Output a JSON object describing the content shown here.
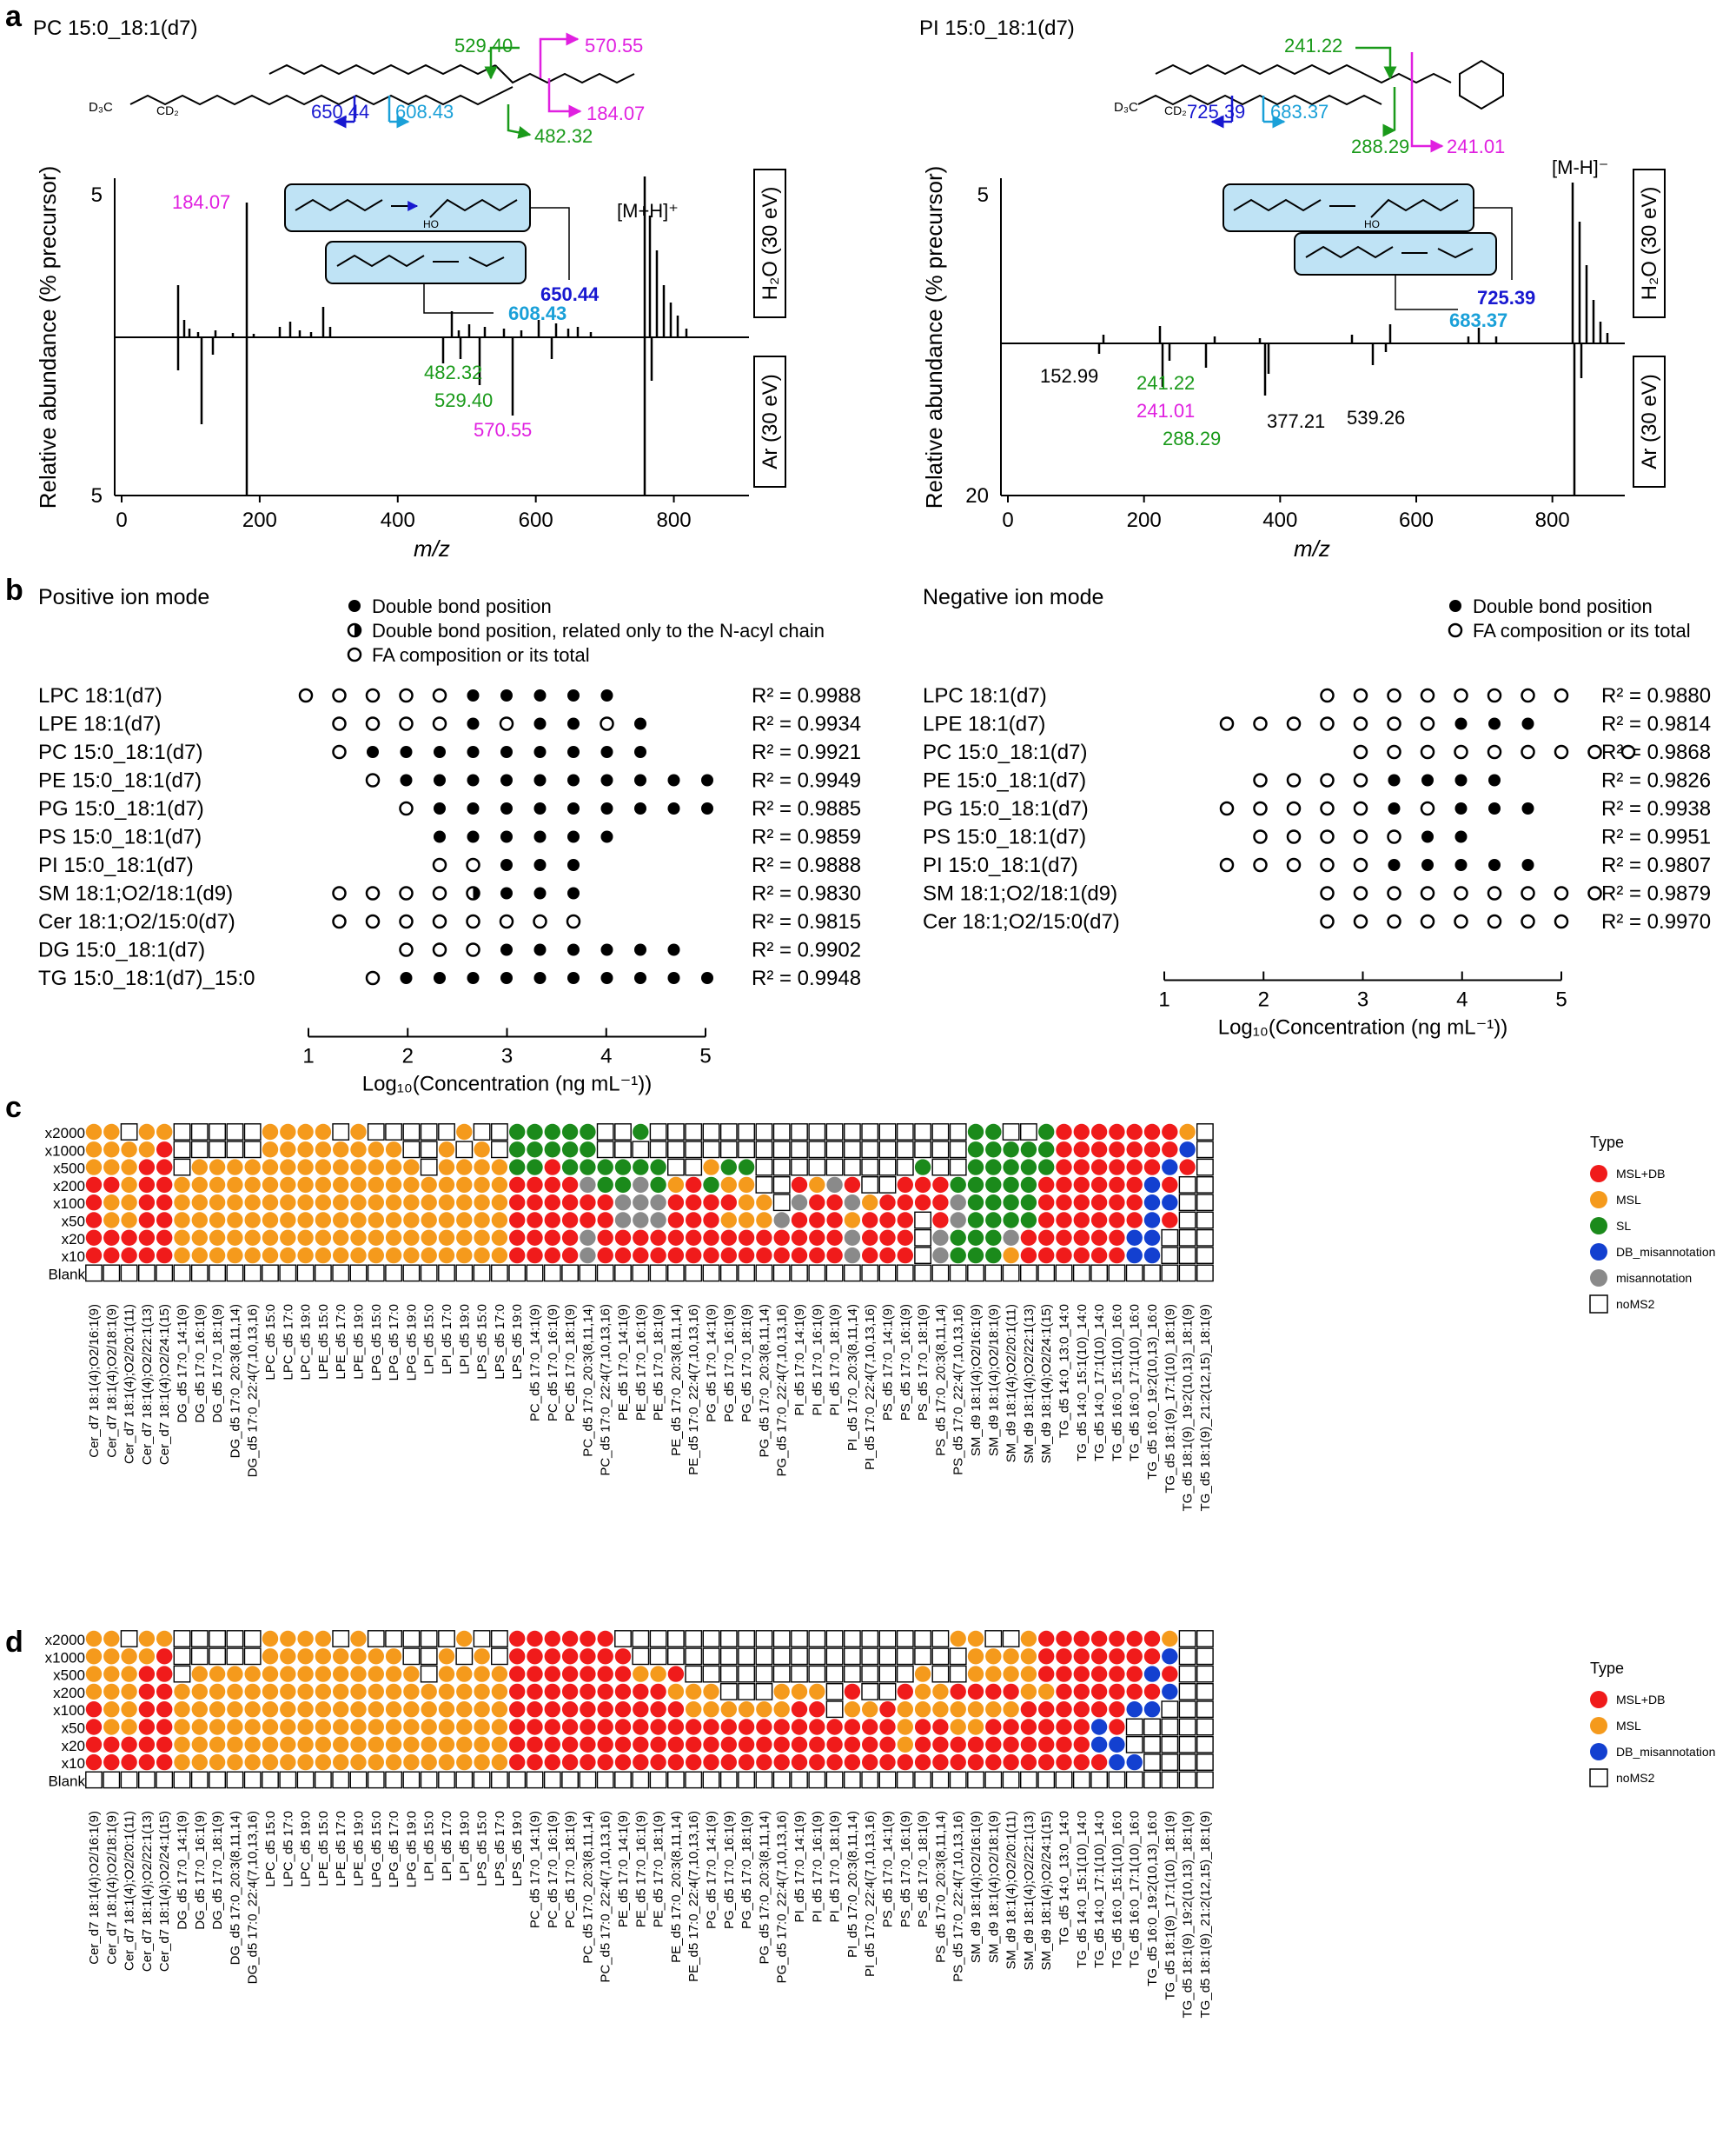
{
  "panel_letters": {
    "a": "a",
    "b": "b",
    "c": "c",
    "d": "d"
  },
  "panel_a": {
    "left": {
      "title": "PC 15:0_18:1(d7)",
      "precursor": "[M+H]⁺",
      "upper_label": "H₂O (30 eV)",
      "lower_label": "Ar (30 eV)",
      "y_top_tick": "5",
      "y_bottom_tick": "5",
      "structure_annotations": [
        "529.40",
        "570.55",
        "184.07",
        "482.32",
        "650.44",
        "608.43"
      ],
      "peak_184": "184.07",
      "peak_650": "650.44",
      "peak_608": "608.43",
      "lower_peaks": [
        "482.32",
        "529.40",
        "570.55"
      ],
      "x_ticks": [
        "0",
        "200",
        "400",
        "600",
        "800"
      ]
    },
    "right": {
      "title": "PI 15:0_18:1(d7)",
      "precursor": "[M-H]⁻",
      "upper_label": "H₂O (30 eV)",
      "lower_label": "Ar (30 eV)",
      "y_top_tick": "5",
      "y_bottom_tick": "20",
      "structure_annotations": [
        "241.22",
        "725.39",
        "683.37",
        "288.29",
        "241.01"
      ],
      "peak_725": "725.39",
      "peak_683": "683.37",
      "lower_peaks": [
        "152.99",
        "241.22",
        "241.01",
        "288.29",
        "377.21",
        "539.26"
      ],
      "x_ticks": [
        "0",
        "200",
        "400",
        "600",
        "800"
      ]
    },
    "ylabel": "Relative abundance (% precursor)",
    "xlabel": "m/z"
  },
  "panel_b": {
    "x_ticks": [
      "1",
      "2",
      "3",
      "4",
      "5"
    ],
    "xlabel": "Log₁₀(Concentration (ng mL⁻¹))",
    "positive": {
      "title": "Positive ion mode",
      "legend": [
        "Double bond position",
        "Double bond position, related only to the N-acyl chain",
        "FA composition or its total"
      ],
      "rows": [
        {
          "label": "LPC 18:1(d7)",
          "r2": "R² = 0.9988",
          "dots": "O O O O O F F F F F"
        },
        {
          "label": "LPE 18:1(d7)",
          "r2": "R² = 0.9934",
          "dots": "- O O O O F O F F O F"
        },
        {
          "label": "PC 15:0_18:1(d7)",
          "r2": "R² = 0.9921",
          "dots": "- O F F F F F F F F F"
        },
        {
          "label": "PE 15:0_18:1(d7)",
          "r2": "R² = 0.9949",
          "dots": "- - O F F F F F F F F F F"
        },
        {
          "label": "PG 15:0_18:1(d7)",
          "r2": "R² = 0.9885",
          "dots": "- - - O F F F F F F F F F"
        },
        {
          "label": "PS 15:0_18:1(d7)",
          "r2": "R² = 0.9859",
          "dots": "- - - - F F F F F F"
        },
        {
          "label": "PI 15:0_18:1(d7)",
          "r2": "R² = 0.9888",
          "dots": "- - - - O O F F F"
        },
        {
          "label": "SM 18:1;O2/18:1(d9)",
          "r2": "R² = 0.9830",
          "dots": "- O O O O H F F F"
        },
        {
          "label": "Cer 18:1;O2/15:0(d7)",
          "r2": "R² = 0.9815",
          "dots": "- O O O O O O O O"
        },
        {
          "label": "DG 15:0_18:1(d7)",
          "r2": "R² = 0.9902",
          "dots": "- - - O O O F F F F F F"
        },
        {
          "label": "TG 15:0_18:1(d7)_15:0",
          "r2": "R² = 0.9948",
          "dots": "- - O F F F F F F F F F F"
        }
      ]
    },
    "negative": {
      "title": "Negative ion mode",
      "legend": [
        "Double bond position",
        "FA composition or its total"
      ],
      "rows": [
        {
          "label": "LPC 18:1(d7)",
          "r2": "R² = 0.9880",
          "dots": "- - - O O O O O O O O"
        },
        {
          "label": "LPE 18:1(d7)",
          "r2": "R² = 0.9814",
          "dots": "O O O O O O O F F F"
        },
        {
          "label": "PC 15:0_18:1(d7)",
          "r2": "R² = 0.9868",
          "dots": "- - - - O O O O O O O O O"
        },
        {
          "label": "PE 15:0_18:1(d7)",
          "r2": "R² = 0.9826",
          "dots": "- O O O O F F F F"
        },
        {
          "label": "PG 15:0_18:1(d7)",
          "r2": "R² = 0.9938",
          "dots": "O O O O O F O F F F"
        },
        {
          "label": "PS 15:0_18:1(d7)",
          "r2": "R² = 0.9951",
          "dots": "- O O O O O F F"
        },
        {
          "label": "PI 15:0_18:1(d7)",
          "r2": "R² = 0.9807",
          "dots": "O O O O O F F F F F"
        },
        {
          "label": "SM 18:1;O2/18:1(d9)",
          "r2": "R² = 0.9879",
          "dots": "- - - O O O O O O O O O"
        },
        {
          "label": "Cer 18:1;O2/15:0(d7)",
          "r2": "R² = 0.9970",
          "dots": "- - - O O O O O O O O"
        }
      ]
    }
  },
  "dilutions": [
    "x2000",
    "x1000",
    "x500",
    "x200",
    "x100",
    "x50",
    "x20",
    "x10",
    "Blank"
  ],
  "lipid_names": [
    "Cer_d7 18:1(4);O2/16:1(9)",
    "Cer_d7 18:1(4);O2/18:1(9)",
    "Cer_d7 18:1(4);O2/20:1(11)",
    "Cer_d7 18:1(4);O2/22:1(13)",
    "Cer_d7 18:1(4);O2/24:1(15)",
    "DG_d5 17:0_14:1(9)",
    "DG_d5 17:0_16:1(9)",
    "DG_d5 17:0_18:1(9)",
    "DG_d5 17:0_20:3(8,11,14)",
    "DG_d5 17:0_22:4(7,10,13,16)",
    "LPC_d5 15:0",
    "LPC_d5 17:0",
    "LPC_d5 19:0",
    "LPE_d5 15:0",
    "LPE_d5 17:0",
    "LPE_d5 19:0",
    "LPG_d5 15:0",
    "LPG_d5 17:0",
    "LPG_d5 19:0",
    "LPI_d5 15:0",
    "LPI_d5 17:0",
    "LPI_d5 19:0",
    "LPS_d5 15:0",
    "LPS_d5 17:0",
    "LPS_d5 19:0",
    "PC_d5 17:0_14:1(9)",
    "PC_d5 17:0_16:1(9)",
    "PC_d5 17:0_18:1(9)",
    "PC_d5 17:0_20:3(8,11,14)",
    "PC_d5 17:0_22:4(7,10,13,16)",
    "PE_d5 17:0_14:1(9)",
    "PE_d5 17:0_16:1(9)",
    "PE_d5 17:0_18:1(9)",
    "PE_d5 17:0_20:3(8,11,14)",
    "PE_d5 17:0_22:4(7,10,13,16)",
    "PG_d5 17:0_14:1(9)",
    "PG_d5 17:0_16:1(9)",
    "PG_d5 17:0_18:1(9)",
    "PG_d5 17:0_20:3(8,11,14)",
    "PG_d5 17:0_22:4(7,10,13,16)",
    "PI_d5 17:0_14:1(9)",
    "PI_d5 17:0_16:1(9)",
    "PI_d5 17:0_18:1(9)",
    "PI_d5 17:0_20:3(8,11,14)",
    "PI_d5 17:0_22:4(7,10,13,16)",
    "PS_d5 17:0_14:1(9)",
    "PS_d5 17:0_16:1(9)",
    "PS_d5 17:0_18:1(9)",
    "PS_d5 17:0_20:3(8,11,14)",
    "PS_d5 17:0_22:4(7,10,13,16)",
    "SM_d9 18:1(4);O2/16:1(9)",
    "SM_d9 18:1(4);O2/18:1(9)",
    "SM_d9 18:1(4);O2/20:1(11)",
    "SM_d9 18:1(4);O2/22:1(13)",
    "SM_d9 18:1(4);O2/24:1(15)",
    "TG_d5 14:0_13:0_14:0",
    "TG_d5 14:0_15:1(10)_14:0",
    "TG_d5 14:0_17:1(10)_14:0",
    "TG_d5 16:0_15:1(10)_16:0",
    "TG_d5 16:0_17:1(10)_16:0",
    "TG_d5 16:0_19:2(10,13)_16:0",
    "TG_d5 18:1(9)_17:1(10)_18:1(9)",
    "TG_d5 18:1(9)_19:2(10,13)_18:1(9)",
    "TG_d5 18:1(9)_21:2(12,15)_18:1(9)"
  ],
  "panel_c": {
    "legend_title": "Type",
    "legend": [
      {
        "label": "MSL+DB",
        "color": "#f01b1b"
      },
      {
        "label": "MSL",
        "color": "#f59a1c"
      },
      {
        "label": "SL",
        "color": "#1b8a1b"
      },
      {
        "label": "DB_misannotation",
        "color": "#1340d0"
      },
      {
        "label": "misannotation",
        "color": "#8a8a8a"
      },
      {
        "label": "noMS2",
        "color": "#ffffff"
      }
    ],
    "grid": [
      "OOEOOEEEEEOOOOEOEEEEEOEEGGGGGEEGEEEEEEEEEEEEEEEEEEGGEEGRRRRRRRO",
      "OOOOREEEEEOOOOOOOOEEOEOEGGGGGEEEEEEEEEEEEEEEEEEEEEGGGGGRRRRRRRB",
      "OOORREOOOOOOOOOOOOOEOOOOGGRGGGGGGEEOGGEEEEEEEEEGEEGGGGGRRRRRRBR",
      "RRORROOOOOOOOOOOOOOOOOOORRRRXGGXGORGOOEEROXREERRRGGGGGRRRRRRBR",
      "ROORROOOOOOOOOOOOOOOOOOORRRRRRXXXRRRROOEXRRXORRRRXGGGGRRRRRRBB",
      "ROORROOOOOOOOOOOOOOOOOOORRRRRRXXXRRROOOXRRRORRRERXGGGGRRRRRRBR",
      "RRRRROOOOOOOOOOOOOOOOOOORRRRXRRRRRRRRRRRRRRXRRREXGGGXRRRRRRBB",
      "RRRRROOOOOOOOOOOOOOOOOOORRRRXRRRRRRRRRRRRRRXRRREXGGGORRRRRRBB",
      "EEEEEEEEEEEEEEEEEEEEEEEEEEEEEEEEEEEEEEEEEEEEEEEEEEEEEEEEEEEEEEE"
    ]
  },
  "panel_d": {
    "legend_title": "Type",
    "legend": [
      {
        "label": "MSL+DB",
        "color": "#f01b1b"
      },
      {
        "label": "MSL",
        "color": "#f59a1c"
      },
      {
        "label": "DB_misannotation",
        "color": "#1340d0"
      },
      {
        "label": "noMS2",
        "color": "#ffffff"
      }
    ],
    "grid": [
      "OOEOOEEEEEOOOOEOEEEEEOEERRRRRREEEEEEEEEEEEEEEEEEEOOEEORRRRRRRO",
      "OOOOREEEEEOOOOOOOOEEOEOERRRRRRREEEEEEEEEEEEEEEEEEEOOOORRRRRRRB",
      "OOORREOOOOOOOOOOOOOEOOOORRRRRRROOREEEEEEEEEEEEEOEEOOOORRRRRRBR",
      "OOORROOOOOOOOOOOOOOOOOOORRRRRRRRROOOEEEOOOEREEROORRRROORRRRRRB",
      "ROORROOOOOOOOOOOOOOOOOOORRRRRRRRRROOOOOORREOOROOOOOOORRRRRRBB",
      "ROORROOOOOOOOOOOOOOOOOOORRRRRRRRRRRRRRRRRRRRRRORROORRRRRRBR",
      "RRRRROOOOOOOOOOOOOOOOOOORRRRRRRRRRRRRRRRRRRRRRORRRRRRRRRRBB",
      "RRRRROOOOOOOOOOOOOOOOOOORRRRRRRRRRRRRRRRRRRRRRRRRRRRRRRRRRBB",
      "EEEEEEEEEEEEEEEEEEEEEEEEEEEEEEEEEEEEEEEEEEEEEEEEEEEEEEEEEEEEEEE"
    ]
  }
}
